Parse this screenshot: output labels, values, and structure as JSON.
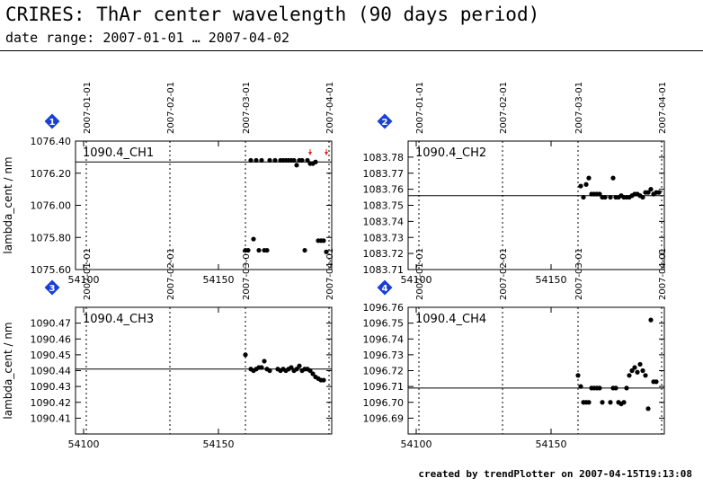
{
  "header": {
    "title": "CRIRES: ThAr center wavelength (90 days period)",
    "subtitle": "date range: 2007-01-01 … 2007-04-02"
  },
  "footer": {
    "text": "created by trendPlotter on 2007-04-15T19:13:08"
  },
  "colors": {
    "points": "#000000",
    "marker": "#1a3fd6",
    "outlier_arrow": "#e02020"
  },
  "chart_data": [
    {
      "type": "scatter",
      "index_label": "1",
      "panel_label": "1090.4_CH1",
      "ylabel": "lambda_cent / nm",
      "xlim": [
        54097,
        54192
      ],
      "ylim": [
        1075.6,
        1076.4
      ],
      "xticks": [
        54100,
        54150
      ],
      "xtick_labels": [
        "54100",
        "54150"
      ],
      "yticks": [
        1075.6,
        1075.8,
        1076.0,
        1076.2,
        1076.4
      ],
      "ytick_labels": [
        "1075.60",
        "1075.80",
        "1076.00",
        "1076.20",
        "1076.40"
      ],
      "date_markers": [
        {
          "x": 54101,
          "label": "2007-01-01"
        },
        {
          "x": 54132,
          "label": "2007-02-01"
        },
        {
          "x": 54160,
          "label": "2007-03-01"
        },
        {
          "x": 54191,
          "label": "2007-04-01"
        }
      ],
      "reference_line": 1076.27,
      "outlier_arrows_x": [
        54184,
        54190
      ],
      "x": [
        54160,
        54161,
        54162,
        54163,
        54164,
        54165,
        54166,
        54167,
        54168,
        54169,
        54171,
        54173,
        54174,
        54175,
        54176,
        54177,
        54178,
        54179,
        54180,
        54181,
        54182,
        54183,
        54184,
        54185,
        54186,
        54187,
        54188,
        54189,
        54190
      ],
      "y": [
        1075.72,
        1075.72,
        1076.28,
        1075.79,
        1076.28,
        1075.72,
        1076.28,
        1075.72,
        1075.72,
        1076.28,
        1076.28,
        1076.28,
        1076.28,
        1076.28,
        1076.28,
        1076.28,
        1076.28,
        1076.25,
        1076.28,
        1076.28,
        1075.72,
        1076.28,
        1076.26,
        1076.26,
        1076.27,
        1075.78,
        1075.78,
        1075.78,
        1075.71
      ]
    },
    {
      "type": "scatter",
      "index_label": "2",
      "panel_label": "1090.4_CH2",
      "ylabel": "",
      "xlim": [
        54097,
        54192
      ],
      "ylim": [
        1083.71,
        1083.79
      ],
      "xticks": [
        54100,
        54150
      ],
      "xtick_labels": [
        "54100",
        "54150"
      ],
      "yticks": [
        1083.71,
        1083.72,
        1083.73,
        1083.74,
        1083.75,
        1083.76,
        1083.77,
        1083.78
      ],
      "ytick_labels": [
        "1083.71",
        "1083.72",
        "1083.73",
        "1083.74",
        "1083.75",
        "1083.76",
        "1083.77",
        "1083.78"
      ],
      "date_markers": [
        {
          "x": 54101,
          "label": "2007-01-01"
        },
        {
          "x": 54132,
          "label": "2007-02-01"
        },
        {
          "x": 54160,
          "label": "2007-03-01"
        },
        {
          "x": 54191,
          "label": "2007-04-01"
        }
      ],
      "reference_line": 1083.756,
      "outlier_arrows_x": [],
      "x": [
        54161,
        54162,
        54163,
        54164,
        54165,
        54166,
        54167,
        54168,
        54169,
        54170,
        54172,
        54173,
        54174,
        54175,
        54176,
        54177,
        54178,
        54179,
        54180,
        54181,
        54182,
        54183,
        54184,
        54185,
        54186,
        54187,
        54188,
        54189,
        54190
      ],
      "y": [
        1083.762,
        1083.755,
        1083.763,
        1083.767,
        1083.757,
        1083.757,
        1083.757,
        1083.757,
        1083.755,
        1083.755,
        1083.755,
        1083.767,
        1083.755,
        1083.755,
        1083.756,
        1083.755,
        1083.755,
        1083.755,
        1083.756,
        1083.757,
        1083.757,
        1083.756,
        1083.755,
        1083.758,
        1083.758,
        1083.76,
        1083.757,
        1083.758,
        1083.758
      ]
    },
    {
      "type": "scatter",
      "index_label": "3",
      "panel_label": "1090.4_CH3",
      "ylabel": "lambda_cent / nm",
      "xlim": [
        54097,
        54192
      ],
      "ylim": [
        1090.4,
        1090.48
      ],
      "xticks": [
        54100,
        54150
      ],
      "xtick_labels": [
        "54100",
        "54150"
      ],
      "yticks": [
        1090.41,
        1090.42,
        1090.43,
        1090.44,
        1090.45,
        1090.46,
        1090.47
      ],
      "ytick_labels": [
        "1090.41",
        "1090.42",
        "1090.43",
        "1090.44",
        "1090.45",
        "1090.46",
        "1090.47"
      ],
      "date_markers": [
        {
          "x": 54101,
          "label": "2007-01-01"
        },
        {
          "x": 54132,
          "label": "2007-02-01"
        },
        {
          "x": 54160,
          "label": "2007-03-01"
        },
        {
          "x": 54191,
          "label": "2007-04-01"
        }
      ],
      "reference_line": 1090.441,
      "outlier_arrows_x": [],
      "x": [
        54160,
        54162,
        54163,
        54164,
        54165,
        54166,
        54167,
        54168,
        54169,
        54172,
        54173,
        54174,
        54175,
        54176,
        54177,
        54178,
        54179,
        54180,
        54181,
        54182,
        54183,
        54184,
        54185,
        54186,
        54187,
        54188,
        54189
      ],
      "y": [
        1090.45,
        1090.441,
        1090.44,
        1090.441,
        1090.442,
        1090.442,
        1090.446,
        1090.441,
        1090.44,
        1090.441,
        1090.44,
        1090.441,
        1090.44,
        1090.441,
        1090.442,
        1090.44,
        1090.441,
        1090.443,
        1090.44,
        1090.441,
        1090.441,
        1090.44,
        1090.438,
        1090.436,
        1090.435,
        1090.434,
        1090.434
      ]
    },
    {
      "type": "scatter",
      "index_label": "4",
      "panel_label": "1090.4_CH4",
      "ylabel": "",
      "xlim": [
        54097,
        54192
      ],
      "ylim": [
        1096.68,
        1096.76
      ],
      "xticks": [
        54100,
        54150
      ],
      "xtick_labels": [
        "54100",
        "54150"
      ],
      "yticks": [
        1096.69,
        1096.7,
        1096.71,
        1096.72,
        1096.73,
        1096.74,
        1096.75,
        1096.76
      ],
      "ytick_labels": [
        "1096.69",
        "1096.70",
        "1096.71",
        "1096.72",
        "1096.73",
        "1096.74",
        "1096.75",
        "1096.76"
      ],
      "date_markers": [
        {
          "x": 54101,
          "label": "2007-01-01"
        },
        {
          "x": 54132,
          "label": "2007-02-01"
        },
        {
          "x": 54160,
          "label": "2007-03-01"
        },
        {
          "x": 54191,
          "label": "2007-04-01"
        }
      ],
      "reference_line": 1096.709,
      "outlier_arrows_x": [],
      "x": [
        54160,
        54161,
        54162,
        54163,
        54164,
        54165,
        54166,
        54167,
        54168,
        54169,
        54172,
        54173,
        54174,
        54175,
        54176,
        54177,
        54178,
        54179,
        54180,
        54181,
        54182,
        54183,
        54184,
        54185,
        54186,
        54187,
        54188,
        54189
      ],
      "y": [
        1096.717,
        1096.71,
        1096.7,
        1096.7,
        1096.7,
        1096.709,
        1096.709,
        1096.709,
        1096.709,
        1096.7,
        1096.7,
        1096.709,
        1096.709,
        1096.7,
        1096.699,
        1096.7,
        1096.709,
        1096.717,
        1096.72,
        1096.722,
        1096.719,
        1096.724,
        1096.72,
        1096.717,
        1096.696,
        1096.752,
        1096.713,
        1096.713
      ]
    }
  ]
}
